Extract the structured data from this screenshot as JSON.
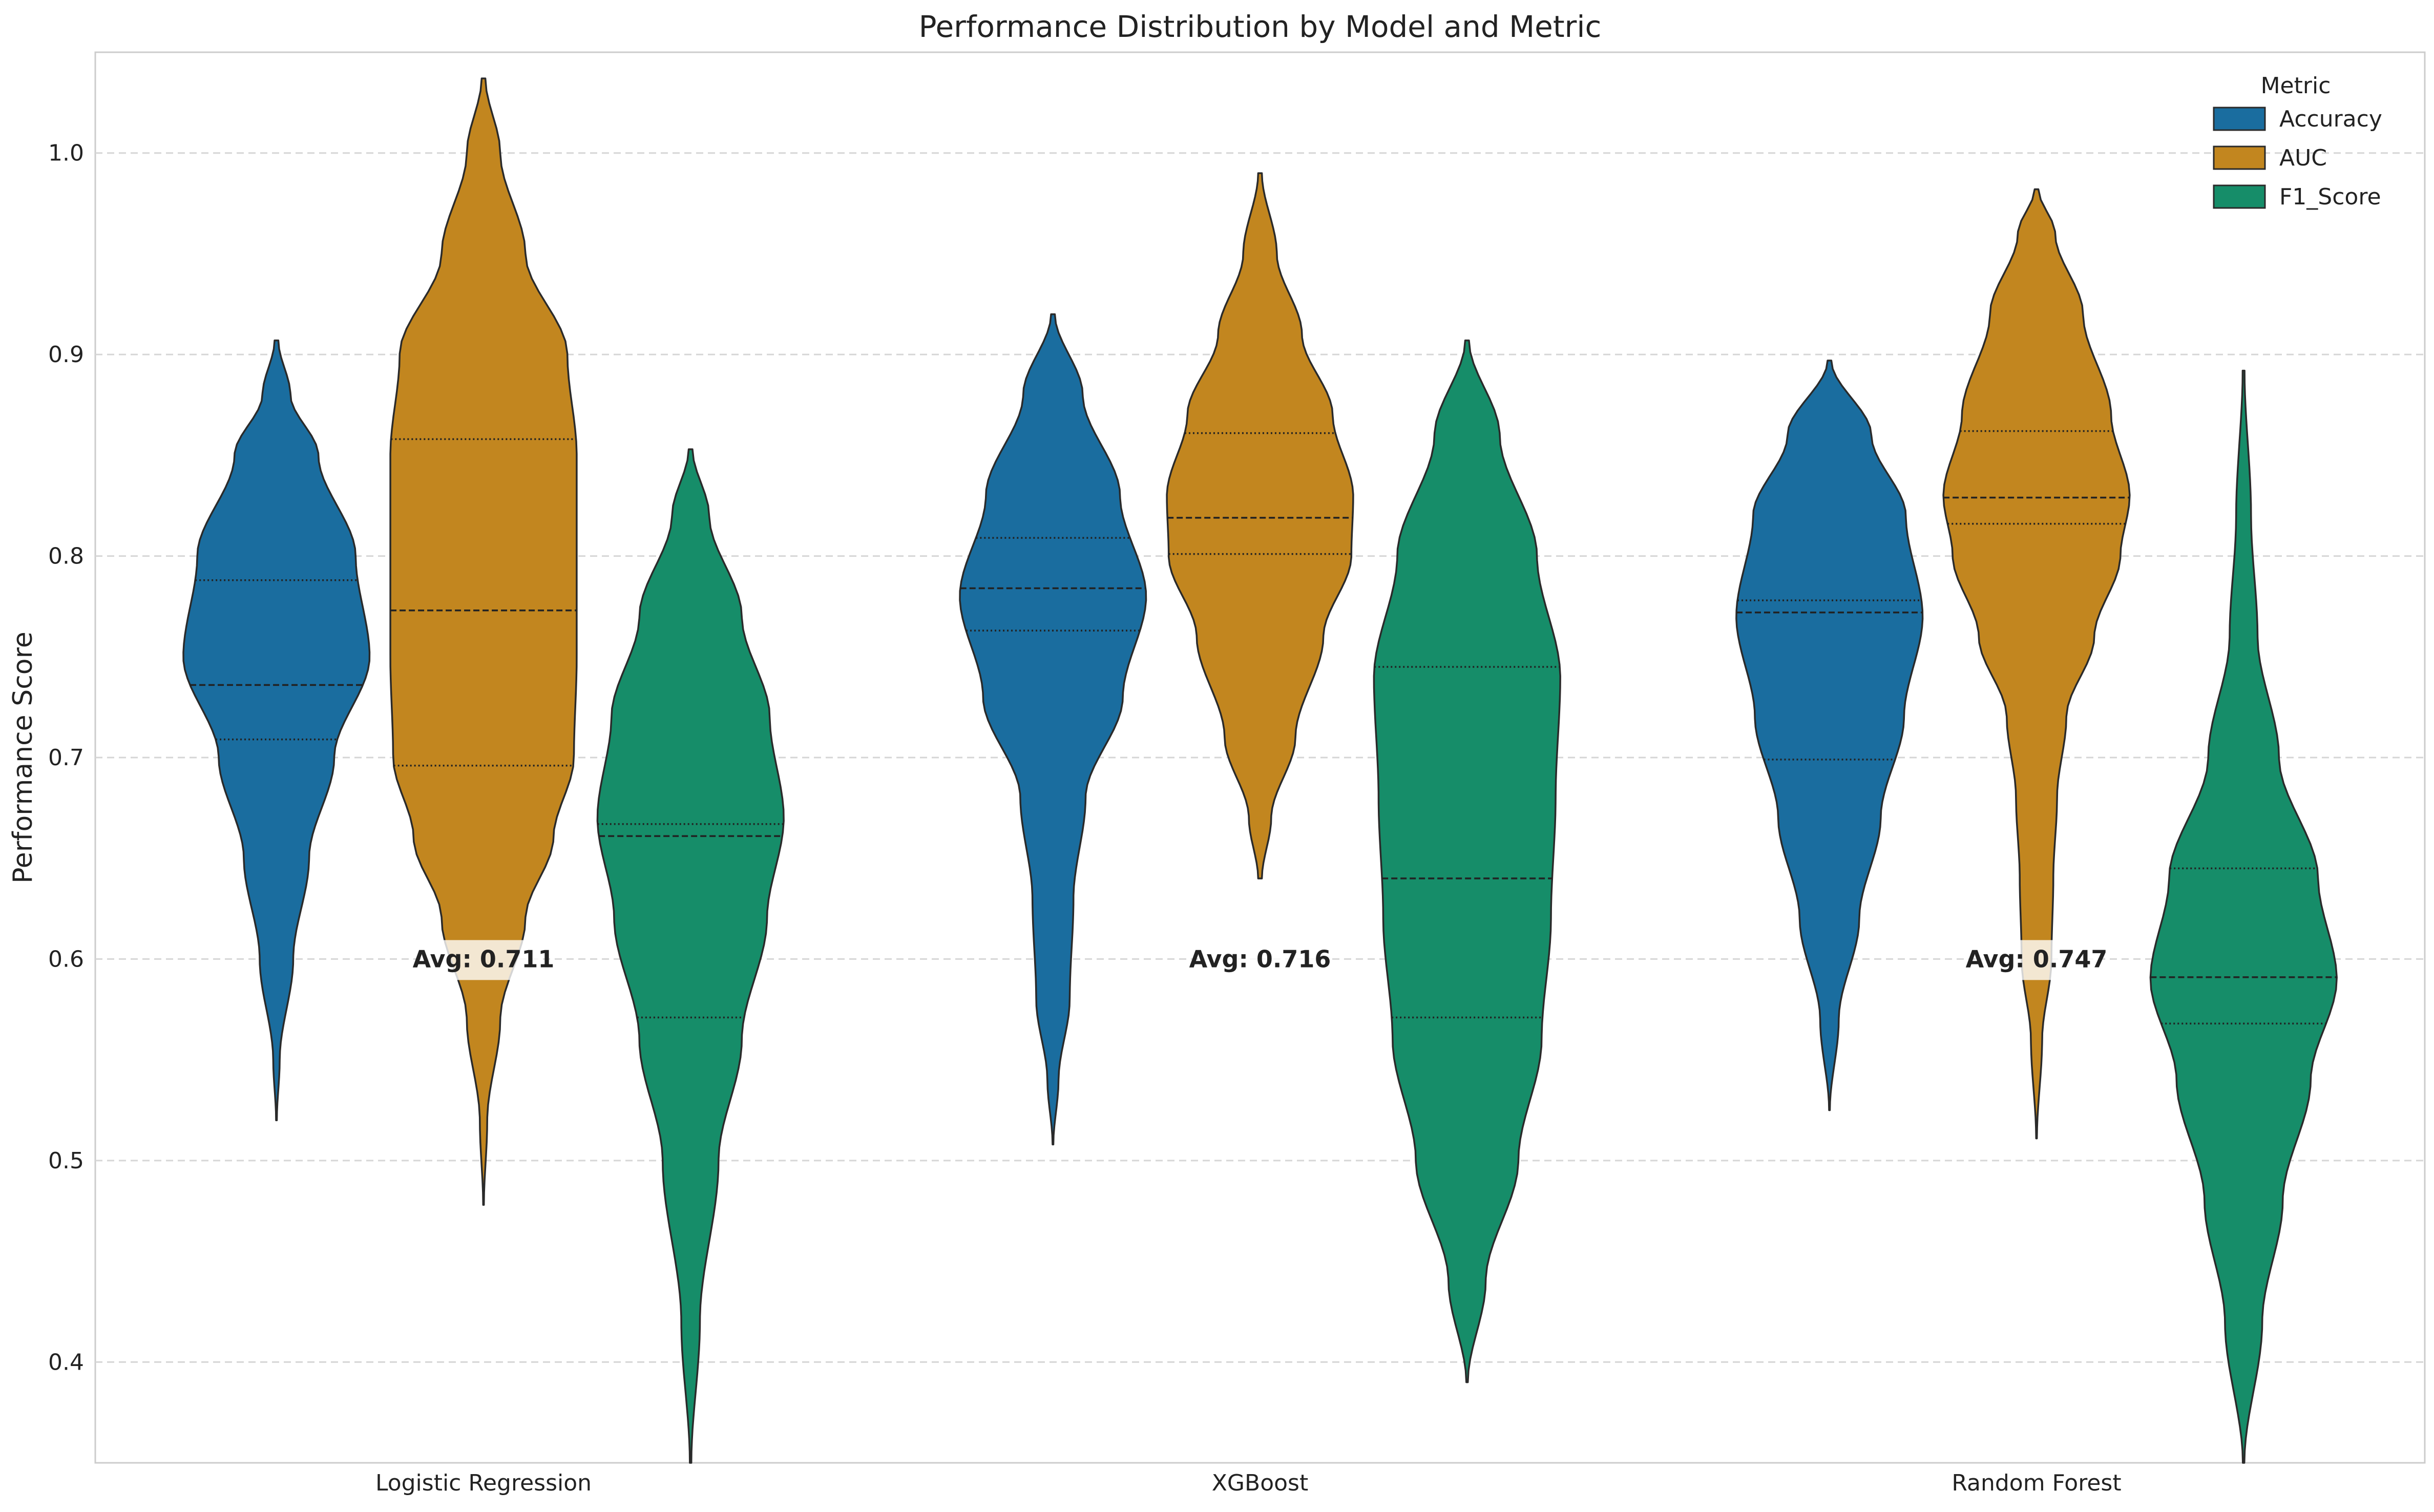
{
  "chart_data": {
    "type": "violin",
    "title": "Performance Distribution by Model and Metric",
    "xlabel": "",
    "ylabel": "Performance Score",
    "ylim": [
      0.35,
      1.05
    ],
    "yticks": [
      "0.4",
      "0.5",
      "0.6",
      "0.7",
      "0.8",
      "0.9",
      "1.0"
    ],
    "grid": "y-dashed",
    "categories": [
      "Logistic Regression",
      "XGBoost",
      "Random Forest"
    ],
    "legend": {
      "title": "Metric",
      "position": "top-right"
    },
    "series": [
      {
        "name": "Accuracy",
        "color": "#1a6d9f",
        "violins": [
          {
            "min": 0.52,
            "max": 0.907,
            "q1": 0.709,
            "median": 0.736,
            "q3": 0.788,
            "profile": [
              [
                0.52,
                0.004
              ],
              [
                0.55,
                0.035
              ],
              [
                0.6,
                0.18
              ],
              [
                0.65,
                0.35
              ],
              [
                0.7,
                0.62
              ],
              [
                0.75,
                1.0
              ],
              [
                0.8,
                0.85
              ],
              [
                0.85,
                0.45
              ],
              [
                0.88,
                0.15
              ],
              [
                0.907,
                0.02
              ]
            ]
          },
          {
            "min": 0.508,
            "max": 0.92,
            "q1": 0.763,
            "median": 0.784,
            "q3": 0.809,
            "profile": [
              [
                0.508,
                0.004
              ],
              [
                0.54,
                0.06
              ],
              [
                0.58,
                0.18
              ],
              [
                0.63,
                0.22
              ],
              [
                0.68,
                0.35
              ],
              [
                0.73,
                0.75
              ],
              [
                0.78,
                1.0
              ],
              [
                0.83,
                0.72
              ],
              [
                0.88,
                0.32
              ],
              [
                0.92,
                0.02
              ]
            ]
          },
          {
            "min": 0.525,
            "max": 0.897,
            "q1": 0.699,
            "median": 0.772,
            "q3": 0.778,
            "profile": [
              [
                0.525,
                0.004
              ],
              [
                0.57,
                0.1
              ],
              [
                0.62,
                0.32
              ],
              [
                0.67,
                0.55
              ],
              [
                0.72,
                0.8
              ],
              [
                0.77,
                1.0
              ],
              [
                0.82,
                0.82
              ],
              [
                0.86,
                0.45
              ],
              [
                0.897,
                0.02
              ]
            ]
          }
        ]
      },
      {
        "name": "AUC",
        "color": "#c2861f",
        "violins": [
          {
            "min": 0.478,
            "max": 1.037,
            "q1": 0.696,
            "median": 0.773,
            "q3": 0.858,
            "profile": [
              [
                0.478,
                0.004
              ],
              [
                0.52,
                0.04
              ],
              [
                0.57,
                0.18
              ],
              [
                0.62,
                0.45
              ],
              [
                0.66,
                0.75
              ],
              [
                0.7,
                0.97
              ],
              [
                0.75,
                1.0
              ],
              [
                0.8,
                1.0
              ],
              [
                0.85,
                1.0
              ],
              [
                0.9,
                0.9
              ],
              [
                0.95,
                0.45
              ],
              [
                1.0,
                0.18
              ],
              [
                1.037,
                0.02
              ]
            ]
          },
          {
            "min": 0.64,
            "max": 0.99,
            "q1": 0.801,
            "median": 0.819,
            "q3": 0.861,
            "profile": [
              [
                0.64,
                0.02
              ],
              [
                0.67,
                0.12
              ],
              [
                0.71,
                0.38
              ],
              [
                0.76,
                0.68
              ],
              [
                0.8,
                0.98
              ],
              [
                0.83,
                1.0
              ],
              [
                0.87,
                0.78
              ],
              [
                0.91,
                0.45
              ],
              [
                0.95,
                0.18
              ],
              [
                0.99,
                0.02
              ]
            ]
          },
          {
            "min": 0.511,
            "max": 0.982,
            "q1": 0.816,
            "median": 0.829,
            "q3": 0.862,
            "profile": [
              [
                0.511,
                0.004
              ],
              [
                0.56,
                0.06
              ],
              [
                0.6,
                0.16
              ],
              [
                0.64,
                0.18
              ],
              [
                0.68,
                0.22
              ],
              [
                0.72,
                0.32
              ],
              [
                0.76,
                0.62
              ],
              [
                0.8,
                0.9
              ],
              [
                0.83,
                1.0
              ],
              [
                0.87,
                0.8
              ],
              [
                0.92,
                0.5
              ],
              [
                0.96,
                0.2
              ],
              [
                0.982,
                0.02
              ]
            ]
          }
        ]
      },
      {
        "name": "F1_Score",
        "color": "#168d69",
        "violins": [
          {
            "min": 0.35,
            "max": 0.853,
            "q1": 0.571,
            "median": 0.661,
            "q3": 0.667,
            "profile": [
              [
                0.35,
                0.008
              ],
              [
                0.42,
                0.1
              ],
              [
                0.5,
                0.3
              ],
              [
                0.56,
                0.55
              ],
              [
                0.62,
                0.82
              ],
              [
                0.67,
                1.0
              ],
              [
                0.72,
                0.85
              ],
              [
                0.77,
                0.55
              ],
              [
                0.82,
                0.2
              ],
              [
                0.853,
                0.02
              ]
            ]
          },
          {
            "min": 0.39,
            "max": 0.907,
            "q1": 0.571,
            "median": 0.64,
            "q3": 0.745,
            "profile": [
              [
                0.39,
                0.008
              ],
              [
                0.44,
                0.2
              ],
              [
                0.5,
                0.55
              ],
              [
                0.56,
                0.8
              ],
              [
                0.62,
                0.9
              ],
              [
                0.68,
                0.95
              ],
              [
                0.74,
                1.0
              ],
              [
                0.8,
                0.75
              ],
              [
                0.86,
                0.35
              ],
              [
                0.907,
                0.02
              ]
            ]
          },
          {
            "min": 0.35,
            "max": 0.892,
            "q1": 0.568,
            "median": 0.591,
            "q3": 0.645,
            "profile": [
              [
                0.35,
                0.008
              ],
              [
                0.42,
                0.2
              ],
              [
                0.48,
                0.42
              ],
              [
                0.54,
                0.72
              ],
              [
                0.59,
                1.0
              ],
              [
                0.64,
                0.8
              ],
              [
                0.7,
                0.38
              ],
              [
                0.76,
                0.15
              ],
              [
                0.82,
                0.08
              ],
              [
                0.892,
                0.01
              ]
            ]
          }
        ]
      }
    ],
    "annotations": [
      {
        "category": "Logistic Regression",
        "text": "Avg: 0.711",
        "y": 0.6
      },
      {
        "category": "XGBoost",
        "text": "Avg: 0.716",
        "y": 0.6
      },
      {
        "category": "Random Forest",
        "text": "Avg: 0.747",
        "y": 0.6
      }
    ]
  }
}
